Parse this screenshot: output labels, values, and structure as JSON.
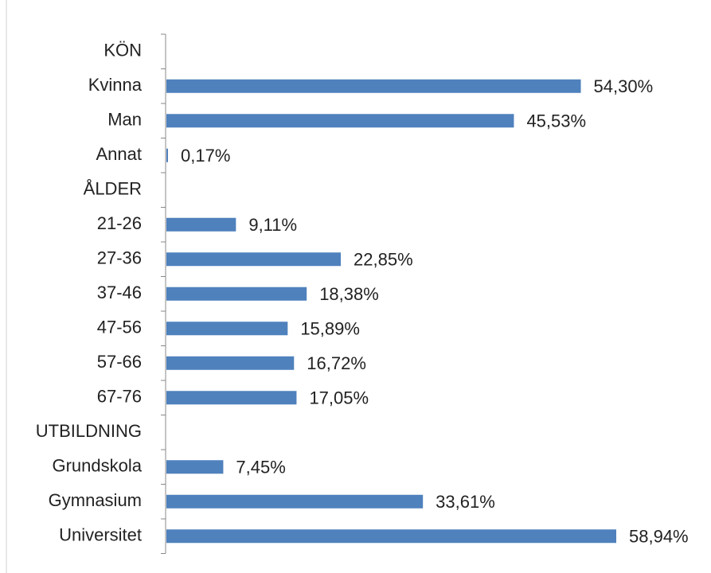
{
  "chart_data": {
    "type": "hbar",
    "categories": [
      "KÖN",
      "Kvinna",
      "Man",
      "Annat",
      "ÅLDER",
      "21-26",
      "27-36",
      "37-46",
      "47-56",
      "57-66",
      "67-76",
      "UTBILDNING",
      "Grundskola",
      "Gymnasium",
      "Universitet"
    ],
    "values": [
      null,
      54.3,
      45.53,
      0.17,
      null,
      9.11,
      22.85,
      18.38,
      15.89,
      16.72,
      17.05,
      null,
      7.45,
      33.61,
      58.94
    ],
    "value_labels": [
      null,
      "54,30%",
      "45,53%",
      "0,17%",
      null,
      "9,11%",
      "22,85%",
      "18,38%",
      "15,89%",
      "16,72%",
      "17,05%",
      null,
      "7,45%",
      "33,61%",
      "58,94%"
    ],
    "color": "#4f81bd"
  }
}
